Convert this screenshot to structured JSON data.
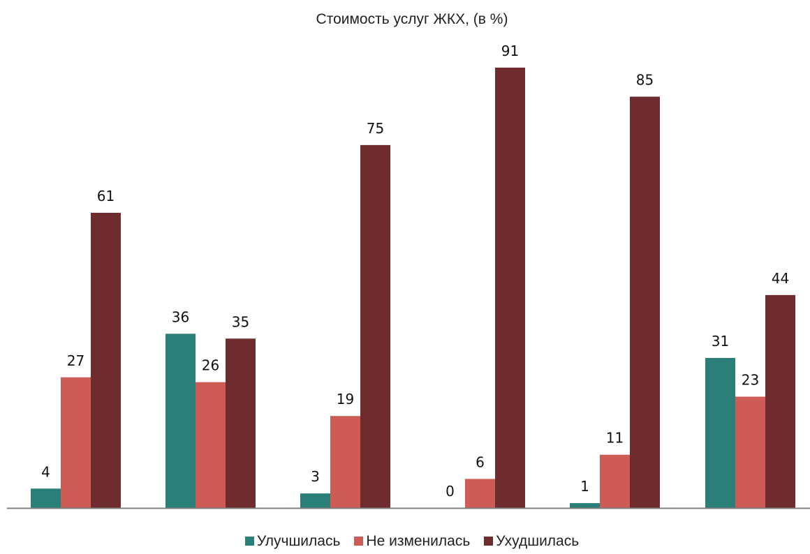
{
  "chart_data": {
    "type": "bar",
    "title": "Стоимость услуг ЖКХ, (в %)",
    "xlabel": "",
    "ylabel": "",
    "categories": [
      "",
      "",
      "",
      "",
      "",
      ""
    ],
    "ylim": [
      0,
      100
    ],
    "grid": false,
    "legend_position": "bottom",
    "series": [
      {
        "name": "Улучшилась",
        "color": "#2a8078",
        "values": [
          4,
          36,
          3,
          0,
          1,
          31
        ]
      },
      {
        "name": "Не изменилась",
        "color": "#cd5c56",
        "values": [
          27,
          26,
          19,
          6,
          11,
          23
        ]
      },
      {
        "name": "Ухудшилась",
        "color": "#6e2c2e",
        "values": [
          61,
          35,
          75,
          91,
          85,
          44
        ]
      }
    ]
  }
}
